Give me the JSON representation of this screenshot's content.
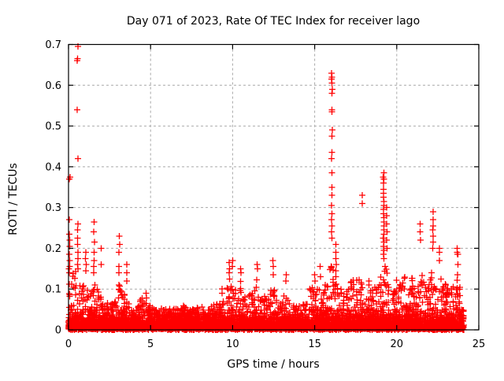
{
  "chart_data": {
    "type": "scatter",
    "title": "Day 071 of 2023, Rate Of TEC Index for receiver lago",
    "xlabel": "GPS time / hours",
    "ylabel": "ROTI / TECUs",
    "xlim": [
      0,
      25
    ],
    "ylim": [
      0,
      0.7
    ],
    "xtick_values": [
      0,
      5,
      10,
      15,
      20,
      25
    ],
    "xtick_labels": [
      "0",
      "5",
      "10",
      "15",
      "20",
      "25"
    ],
    "ytick_values": [
      0,
      0.1,
      0.2,
      0.3,
      0.4,
      0.5,
      0.6,
      0.7
    ],
    "ytick_labels": [
      "0",
      "0.1",
      "0.2",
      "0.3",
      "0.4",
      "0.5",
      "0.6",
      "0.7"
    ],
    "grid": {
      "show": true,
      "color": "#a8a8a8",
      "style": "dashed"
    },
    "legend": "none",
    "marker": {
      "shape": "plus",
      "color": "#ff0000"
    },
    "border_color": "#000000",
    "background": "#ffffff",
    "time_range_hours": [
      0,
      24.08
    ],
    "baseline": {
      "description": "dense noise floor of ROTI values 0-0.05 TECU across all 24 hours, with textured mounds up to local envelope",
      "seed": 71,
      "n_points": 7200,
      "solid_band_max": 0.048,
      "envelope_step_hours": 0.25,
      "envelope": [
        0.16,
        0.14,
        0.15,
        0.1,
        0.12,
        0.09,
        0.13,
        0.1,
        0.08,
        0.07,
        0.07,
        0.06,
        0.12,
        0.1,
        0.09,
        0.07,
        0.06,
        0.07,
        0.08,
        0.08,
        0.06,
        0.05,
        0.06,
        0.05,
        0.05,
        0.06,
        0.06,
        0.05,
        0.06,
        0.05,
        0.05,
        0.06,
        0.06,
        0.05,
        0.05,
        0.06,
        0.07,
        0.08,
        0.07,
        0.13,
        0.12,
        0.09,
        0.12,
        0.08,
        0.09,
        0.09,
        0.13,
        0.09,
        0.08,
        0.09,
        0.12,
        0.08,
        0.08,
        0.1,
        0.07,
        0.06,
        0.06,
        0.06,
        0.07,
        0.11,
        0.1,
        0.11,
        0.08,
        0.14,
        0.2,
        0.13,
        0.11,
        0.09,
        0.1,
        0.13,
        0.13,
        0.14,
        0.11,
        0.13,
        0.1,
        0.11,
        0.13,
        0.16,
        0.14,
        0.1,
        0.13,
        0.11,
        0.13,
        0.1,
        0.14,
        0.11,
        0.15,
        0.11,
        0.13,
        0.15,
        0.11,
        0.13,
        0.11,
        0.09,
        0.12,
        0.14,
        0.05
      ]
    },
    "outlier_clusters": [
      {
        "x": 0.07,
        "jitter": 0.06,
        "ys": [
          0.375,
          0.37,
          0.27,
          0.235,
          0.22,
          0.205,
          0.185,
          0.17,
          0.155,
          0.14
        ]
      },
      {
        "x": 0.56,
        "jitter": 0.06,
        "ys": [
          0.695,
          0.665,
          0.66,
          0.54,
          0.42,
          0.26,
          0.245,
          0.225,
          0.21,
          0.19,
          0.175,
          0.16,
          0.15
        ]
      },
      {
        "x": 1.05,
        "jitter": 0.05,
        "ys": [
          0.19,
          0.175,
          0.16,
          0.145
        ]
      },
      {
        "x": 1.55,
        "jitter": 0.05,
        "ys": [
          0.265,
          0.24,
          0.215,
          0.19,
          0.17,
          0.155,
          0.14
        ]
      },
      {
        "x": 2.0,
        "jitter": 0.04,
        "ys": [
          0.2,
          0.16
        ]
      },
      {
        "x": 3.1,
        "jitter": 0.05,
        "ys": [
          0.23,
          0.21,
          0.19,
          0.155,
          0.14
        ]
      },
      {
        "x": 3.55,
        "jitter": 0.04,
        "ys": [
          0.16,
          0.14,
          0.12
        ]
      },
      {
        "x": 4.7,
        "jitter": 0.04,
        "ys": [
          0.09
        ]
      },
      {
        "x": 9.35,
        "jitter": 0.04,
        "ys": [
          0.1,
          0.09
        ]
      },
      {
        "x": 9.8,
        "jitter": 0.04,
        "ys": [
          0.165,
          0.15,
          0.14
        ]
      },
      {
        "x": 10.0,
        "jitter": 0.04,
        "ys": [
          0.17,
          0.155
        ]
      },
      {
        "x": 10.5,
        "jitter": 0.05,
        "ys": [
          0.15,
          0.14
        ]
      },
      {
        "x": 11.5,
        "jitter": 0.05,
        "ys": [
          0.16,
          0.15
        ]
      },
      {
        "x": 12.45,
        "jitter": 0.05,
        "ys": [
          0.17,
          0.155,
          0.135
        ]
      },
      {
        "x": 13.25,
        "jitter": 0.04,
        "ys": [
          0.135,
          0.12
        ]
      },
      {
        "x": 15.0,
        "jitter": 0.04,
        "ys": [
          0.135,
          0.12
        ]
      },
      {
        "x": 15.35,
        "jitter": 0.04,
        "ys": [
          0.155,
          0.13
        ]
      },
      {
        "x": 16.05,
        "jitter": 0.05,
        "ys": [
          0.63,
          0.62,
          0.615,
          0.605,
          0.59,
          0.58,
          0.54,
          0.535,
          0.49,
          0.475,
          0.435,
          0.42,
          0.385,
          0.35,
          0.33,
          0.305,
          0.285,
          0.27,
          0.255,
          0.24,
          0.225
        ]
      },
      {
        "x": 16.3,
        "jitter": 0.04,
        "ys": [
          0.21,
          0.19,
          0.175,
          0.16,
          0.145,
          0.13
        ]
      },
      {
        "x": 17.9,
        "jitter": 0.03,
        "ys": [
          0.33,
          0.31
        ]
      },
      {
        "x": 19.2,
        "jitter": 0.05,
        "ys": [
          0.385,
          0.375,
          0.37,
          0.36,
          0.345,
          0.335,
          0.325,
          0.315,
          0.305,
          0.295,
          0.285,
          0.275,
          0.265,
          0.255,
          0.245,
          0.235,
          0.225,
          0.215,
          0.205,
          0.195,
          0.185,
          0.175
        ]
      },
      {
        "x": 19.4,
        "jitter": 0.04,
        "ys": [
          0.3,
          0.28,
          0.26,
          0.24,
          0.22,
          0.2
        ]
      },
      {
        "x": 21.45,
        "jitter": 0.04,
        "ys": [
          0.26,
          0.24,
          0.22
        ]
      },
      {
        "x": 22.2,
        "jitter": 0.04,
        "ys": [
          0.29,
          0.27,
          0.255,
          0.245,
          0.23,
          0.215,
          0.2
        ]
      },
      {
        "x": 22.6,
        "jitter": 0.04,
        "ys": [
          0.2,
          0.19,
          0.17
        ]
      },
      {
        "x": 23.7,
        "jitter": 0.05,
        "ys": [
          0.2,
          0.19,
          0.185,
          0.185,
          0.16,
          0.135
        ]
      }
    ]
  }
}
